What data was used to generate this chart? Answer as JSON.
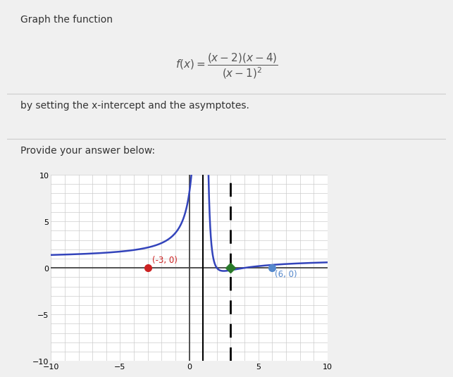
{
  "title_text": "Graph the function",
  "subtitle": "by setting the x-intercept and the asymptotes.",
  "provide_text": "Provide your answer below:",
  "xlim": [
    -10,
    10
  ],
  "ylim": [
    -10,
    10
  ],
  "xticks": [
    -10,
    -5,
    0,
    5,
    10
  ],
  "yticks": [
    -10,
    -5,
    0,
    5,
    10
  ],
  "grid_color": "#cccccc",
  "axis_color": "#444444",
  "curve_color": "#3344bb",
  "va_solid_x": 1,
  "va_dashed_x": 3,
  "point_red": [
    -3,
    0
  ],
  "point_green": [
    3,
    0
  ],
  "point_blue": [
    6,
    0
  ],
  "label_red": "(-3, 0)",
  "label_blue": "(6, 0)",
  "bg_color": "#ffffff",
  "fig_bg_color": "#f0f0f0"
}
